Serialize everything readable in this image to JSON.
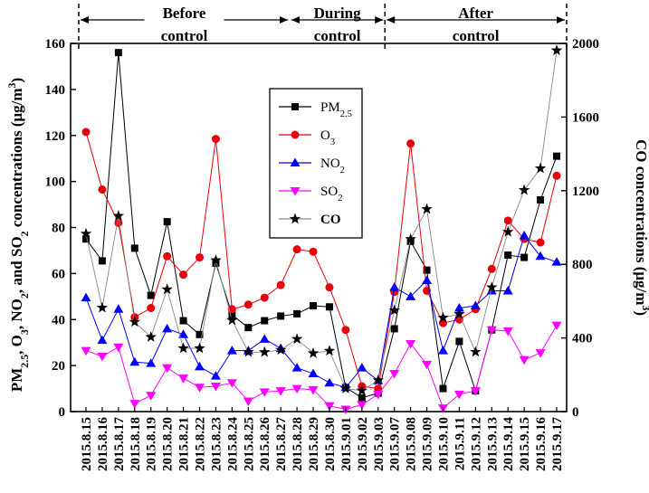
{
  "chart_data": {
    "type": "line",
    "ylabel_left_parts": [
      {
        "t": "PM"
      },
      {
        "t": "2.5",
        "sub": true
      },
      {
        "t": ", O"
      },
      {
        "t": "3",
        "sub": true
      },
      {
        "t": ", NO"
      },
      {
        "t": "2",
        "sub": true
      },
      {
        "t": ", and SO"
      },
      {
        "t": "2",
        "sub": true
      },
      {
        "t": " concentrations (μg/m"
      },
      {
        "t": "3",
        "sup": true
      },
      {
        "t": ")"
      }
    ],
    "ylabel_right_parts": [
      {
        "t": "CO concentrations (μg/m"
      },
      {
        "t": "3",
        "sup": true
      },
      {
        "t": ")"
      }
    ],
    "ylim_left": [
      0,
      160
    ],
    "yticks_left": [
      "0",
      "20",
      "40",
      "60",
      "80",
      "100",
      "120",
      "140",
      "160"
    ],
    "ylim_right": [
      0,
      2000
    ],
    "yticks_right": [
      "0",
      "400",
      "800",
      "1200",
      "1600",
      "2000"
    ],
    "x": [
      "2015.8.15",
      "2015.8.16",
      "2015.8.17",
      "2015.8.18",
      "2015.8.19",
      "2015.8.20",
      "2015.8.21",
      "2015.8.22",
      "2015.8.23",
      "2015.8.24",
      "2015.8.25",
      "2015.8.26",
      "2015.8.27",
      "2015.8.28",
      "2015.8.29",
      "2015.8.30",
      "2015.9.01",
      "2015.9.02",
      "2015.9.03",
      "2015.9.07",
      "2015.9.08",
      "2015.9.09",
      "2015.9.10",
      "2015.9.11",
      "2015.9.12",
      "2015.9.13",
      "2015.9.14",
      "2015.9.15",
      "2015.9.16",
      "2015.9.17"
    ],
    "periods": [
      {
        "label_lines": [
          "Before",
          "control"
        ],
        "start_index": 0,
        "end_index": 9.5
      },
      {
        "label_lines": [
          "During",
          "control"
        ],
        "start_index": 9.5,
        "end_index": 13.5
      },
      {
        "label_lines": [
          "After",
          "control"
        ],
        "start_index": 13.5,
        "end_index": 19
      }
    ],
    "series": [
      {
        "name_parts": [
          {
            "t": "PM"
          },
          {
            "t": "2.5",
            "sub": true
          }
        ],
        "axis": "left",
        "color": "#000000",
        "marker": "square",
        "values": [
          75,
          65.5,
          156,
          71,
          50.5,
          82.5,
          39.5,
          33.5,
          64.5,
          42,
          36.5,
          39.5,
          41.5,
          42.5,
          46,
          45.5,
          10.5,
          6,
          8,
          36,
          74,
          61.5,
          10,
          30.5,
          9,
          35.5,
          68,
          67,
          92,
          111
        ]
      },
      {
        "name_parts": [
          {
            "t": "O"
          },
          {
            "t": "3",
            "sub": true
          }
        ],
        "axis": "left",
        "color": "#e8000b",
        "marker": "circle",
        "values": [
          121.5,
          96.5,
          82,
          41,
          45,
          67.5,
          59.5,
          67,
          118.5,
          44.5,
          46.5,
          49.5,
          55,
          70.5,
          69.5,
          54,
          35.5,
          11,
          10,
          52,
          116.5,
          52.5,
          38.5,
          40,
          44.5,
          62,
          83,
          75,
          73.5,
          102.5
        ]
      },
      {
        "name_parts": [
          {
            "t": "NO"
          },
          {
            "t": "2",
            "sub": true
          }
        ],
        "axis": "left",
        "color": "#0000ff",
        "marker": "triangle-up",
        "values": [
          49.5,
          31,
          44.5,
          21.5,
          21,
          36,
          33.5,
          19.5,
          15.5,
          26.5,
          26.5,
          31.5,
          27.5,
          19,
          16.5,
          12.5,
          10.5,
          19,
          13.5,
          54,
          50,
          57,
          26.5,
          45,
          46,
          52.5,
          52.5,
          76.5,
          67.5,
          65
        ]
      },
      {
        "name_parts": [
          {
            "t": "SO"
          },
          {
            "t": "2",
            "sub": true
          }
        ],
        "axis": "left",
        "color": "#ff00ff",
        "marker": "triangle-down",
        "values": [
          26.5,
          24,
          28,
          3.5,
          7,
          19,
          14.5,
          10.5,
          11,
          12.5,
          4.5,
          8.5,
          9,
          10,
          9.5,
          2.5,
          1,
          3,
          7.5,
          16.5,
          29.5,
          20.5,
          1.5,
          7.5,
          9,
          35.5,
          35,
          22.5,
          25.5,
          37.5
        ]
      },
      {
        "name_parts": [
          {
            "t": "CO",
            "bold": true
          }
        ],
        "axis": "right",
        "color": "#000000",
        "line_color": "#888888",
        "marker": "star",
        "values": [
          966,
          564,
          1063,
          487,
          405,
          664,
          344,
          344,
          822,
          497,
          323,
          323,
          335,
          394,
          317,
          330,
          125,
          114,
          170,
          550,
          937,
          1100,
          510,
          530,
          324,
          675,
          976,
          1203,
          1321,
          1962
        ]
      }
    ]
  }
}
